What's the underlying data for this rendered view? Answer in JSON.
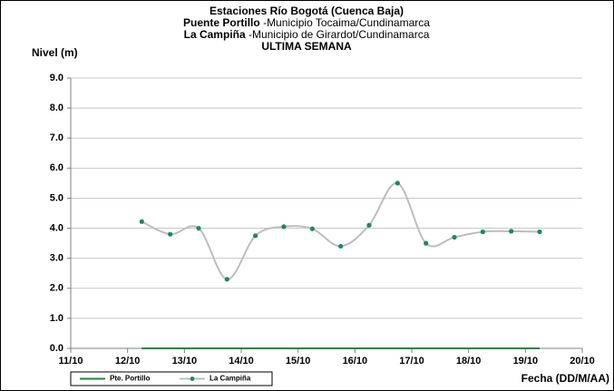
{
  "chart_data": {
    "type": "line",
    "title": "Estaciones Río Bogotá (Cuenca Baja)",
    "subtitles": [
      {
        "station": "Puente Portillo",
        "text": " -Municipio Tocaima/Cundinamarca"
      },
      {
        "station": "La Campiña",
        "text": " -Municipio de Girardot/Cundinamarca"
      }
    ],
    "period": "ULTIMA SEMANA",
    "ylabel": "Nivel (m)",
    "xlabel": "Fecha (DD/M/AA)",
    "xlim": [
      11,
      20
    ],
    "xticks": [
      {
        "value": 11,
        "label": "11/10"
      },
      {
        "value": 12,
        "label": "12/10"
      },
      {
        "value": 13,
        "label": "13/10"
      },
      {
        "value": 14,
        "label": "14/10"
      },
      {
        "value": 15,
        "label": "15/10"
      },
      {
        "value": 16,
        "label": "16/10"
      },
      {
        "value": 17,
        "label": "17/10"
      },
      {
        "value": 18,
        "label": "18/10"
      },
      {
        "value": 19,
        "label": "19/10"
      },
      {
        "value": 20,
        "label": "20/10"
      }
    ],
    "ylim": [
      0,
      9
    ],
    "yticks": [
      {
        "value": 0,
        "label": "0.0"
      },
      {
        "value": 1,
        "label": "1.0"
      },
      {
        "value": 2,
        "label": "2.0"
      },
      {
        "value": 3,
        "label": "3.0"
      },
      {
        "value": 4,
        "label": "4.0"
      },
      {
        "value": 5,
        "label": "5.0"
      },
      {
        "value": 6,
        "label": "6.0"
      },
      {
        "value": 7,
        "label": "7.0"
      },
      {
        "value": 8,
        "label": "8.0"
      },
      {
        "value": 9,
        "label": "9.0"
      }
    ],
    "grid": true,
    "x": [
      12.25,
      12.75,
      13.25,
      13.75,
      14.25,
      14.75,
      15.25,
      15.75,
      16.25,
      16.75,
      17.25,
      17.75,
      18.25,
      18.75,
      19.25
    ],
    "series": [
      {
        "name": "Pte. Portillo",
        "color": "#1a8a3a",
        "markers": false,
        "smooth": false,
        "values": [
          0,
          0,
          0,
          0,
          0,
          0,
          0,
          0,
          0,
          0,
          0,
          0,
          0,
          0,
          0
        ]
      },
      {
        "name": "La Campiña",
        "color": "#bdbdbd",
        "marker_color": "#1a8a5a",
        "markers": true,
        "smooth": true,
        "values": [
          4.22,
          3.8,
          4.0,
          2.3,
          3.75,
          4.05,
          3.98,
          3.4,
          4.1,
          5.5,
          3.5,
          3.7,
          3.88,
          3.9,
          3.88
        ]
      }
    ],
    "legend": "bottom-left"
  }
}
